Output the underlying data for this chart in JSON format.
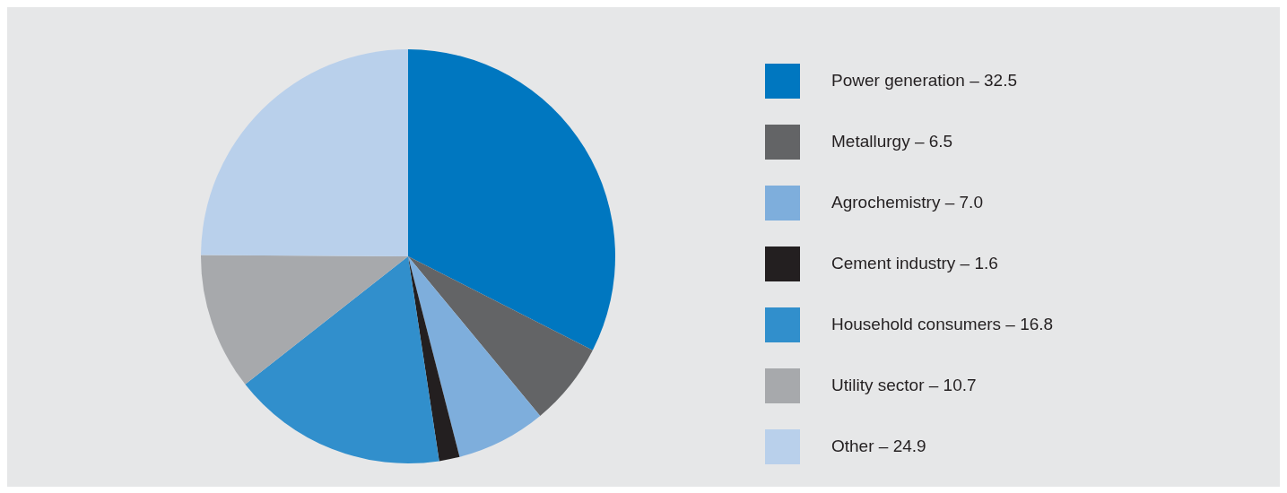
{
  "chart_data": {
    "type": "pie",
    "categories": [
      "Power generation – 32.5",
      "Metallurgy – 6.5",
      "Agrochemistry – 7.0",
      "Cement industry – 1.6",
      "Household consumers – 16.8",
      "Utility sector – 10.7",
      "Other – 24.9"
    ],
    "values": [
      32.5,
      6.5,
      7.0,
      1.6,
      16.8,
      10.7,
      24.9
    ],
    "colors": [
      "#0077c0",
      "#636466",
      "#7eaedc",
      "#231f20",
      "#318fcc",
      "#a7a9ac",
      "#b9d0eb"
    ],
    "legend": "right"
  }
}
